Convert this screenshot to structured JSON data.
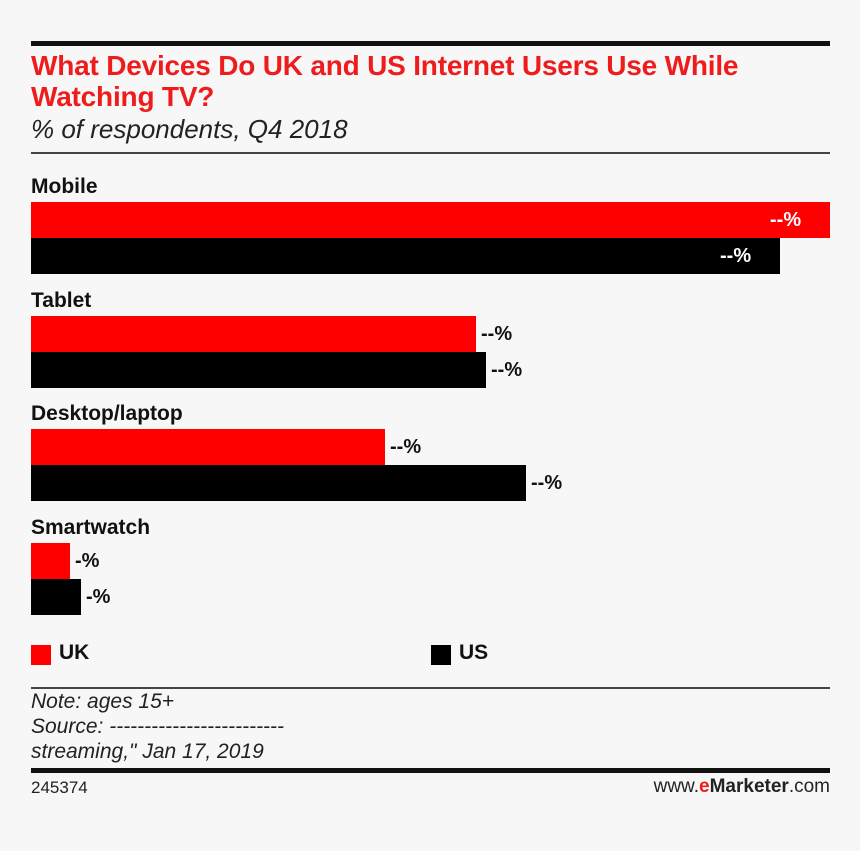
{
  "chart_data": {
    "type": "bar",
    "orientation": "horizontal",
    "title": "What Devices Do UK and US Internet Users Use While Watching TV?",
    "subtitle": "% of respondents, Q4 2018",
    "categories": [
      "Mobile",
      "Tablet",
      "Desktop/laptop",
      "Smartwatch"
    ],
    "series": [
      {
        "name": "UK",
        "color": "#ff0000",
        "values": [
          100,
          55.7,
          44.3,
          4.9
        ],
        "labels": [
          "--%",
          "--%",
          "--%",
          "-%"
        ]
      },
      {
        "name": "US",
        "color": "#000000",
        "values": [
          93.8,
          57.0,
          62.0,
          6.3
        ],
        "labels": [
          "--%",
          "--%",
          "--%",
          "-%"
        ]
      }
    ],
    "xlim": [
      0,
      100
    ],
    "legend_placement": "bottom",
    "grid": false
  },
  "footer": {
    "note": "Note: ages 15+",
    "source": "Source: -------------------------",
    "source_cont": "streaming,\" Jan 17, 2019",
    "chart_id": "245374",
    "brand_prefix": "www.",
    "brand_e": "e",
    "brand_name": "Marketer",
    "brand_suffix": ".com"
  }
}
